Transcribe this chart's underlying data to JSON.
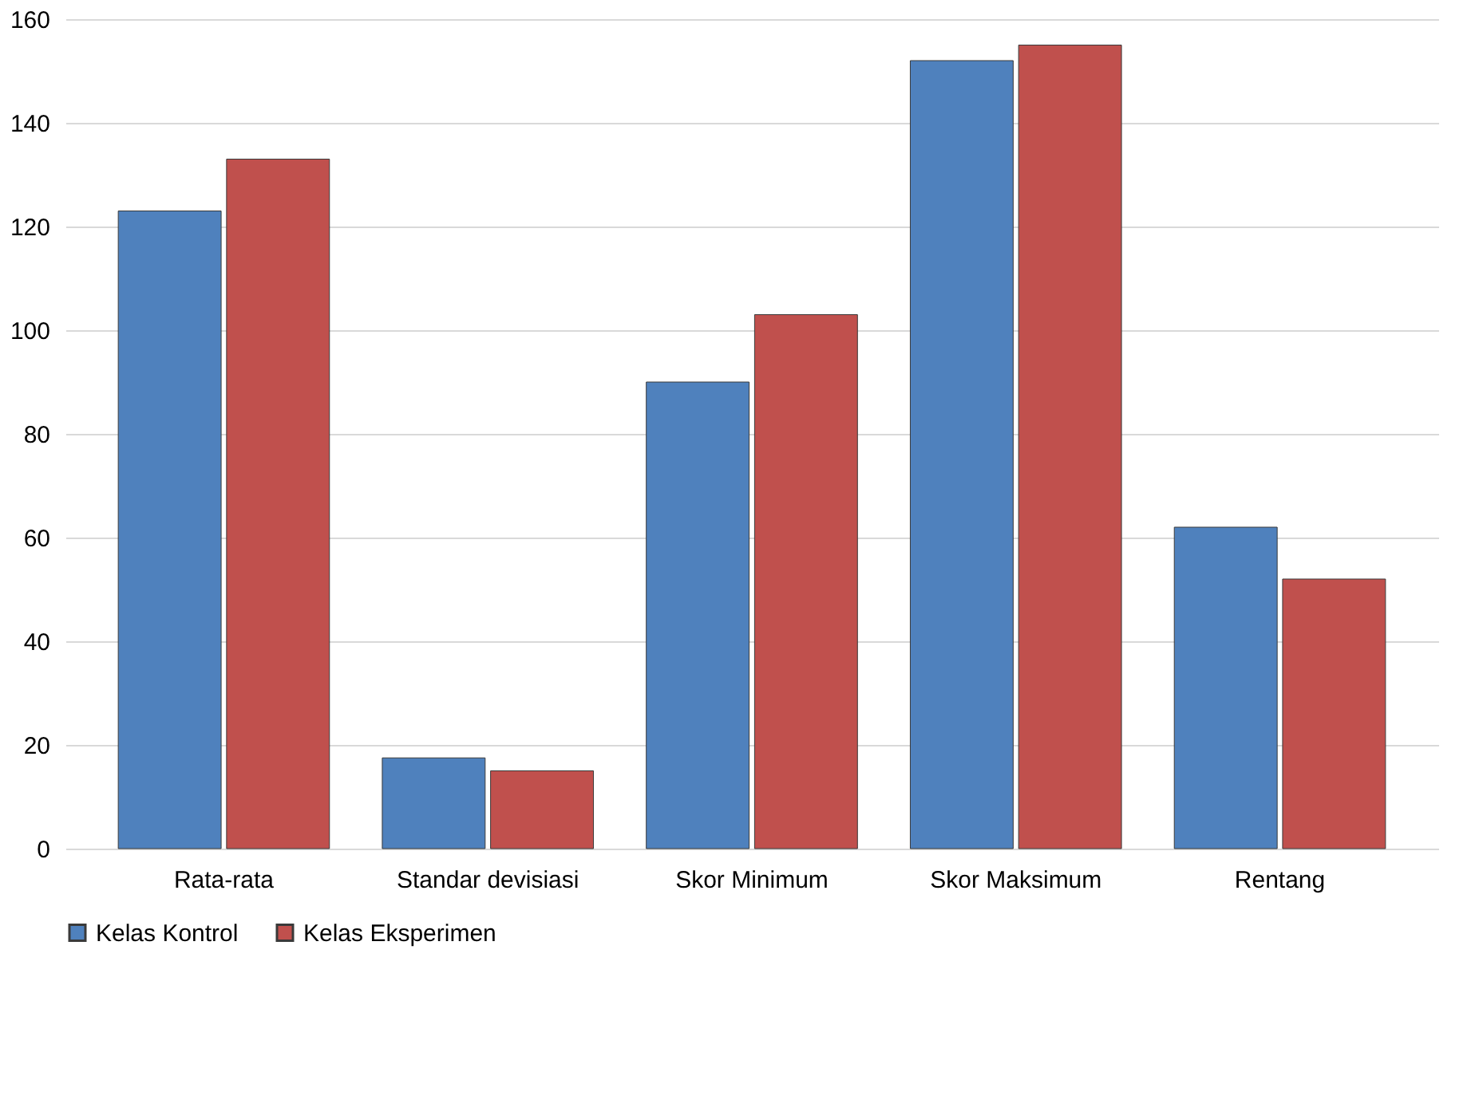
{
  "chart_data": {
    "type": "bar",
    "categories": [
      "Rata-rata",
      "Standar devisiasi",
      "Skor Minimum",
      "Skor Maksimum",
      "Rentang"
    ],
    "series": [
      {
        "name": "Kelas Kontrol",
        "color": "#4f81bd",
        "values": [
          123,
          17.5,
          90,
          152,
          62
        ]
      },
      {
        "name": "Kelas Eksperimen",
        "color": "#c0504d",
        "values": [
          133,
          15,
          103,
          155,
          52
        ]
      }
    ],
    "ylim": [
      0,
      160
    ],
    "yticks": [
      0,
      20,
      40,
      60,
      80,
      100,
      120,
      140,
      160
    ],
    "grid": "y",
    "legend": "bottom"
  }
}
